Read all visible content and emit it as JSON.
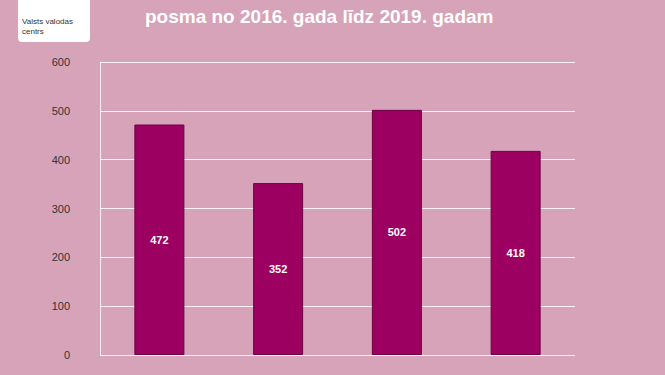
{
  "chart_data": {
    "type": "bar",
    "title": "posma no 2016. gada līdz 2019. gadam",
    "annotations": [
      "Valsts valodas centrs"
    ],
    "categories": [
      null,
      null,
      null,
      null
    ],
    "values": [
      472,
      352,
      502,
      418
    ],
    "color": "#9c0060",
    "ylim": [
      0,
      600
    ],
    "yticks": [
      0,
      100,
      200,
      300,
      400,
      500,
      600
    ],
    "grid": true,
    "data_labels": true,
    "tick_labels": "y"
  }
}
